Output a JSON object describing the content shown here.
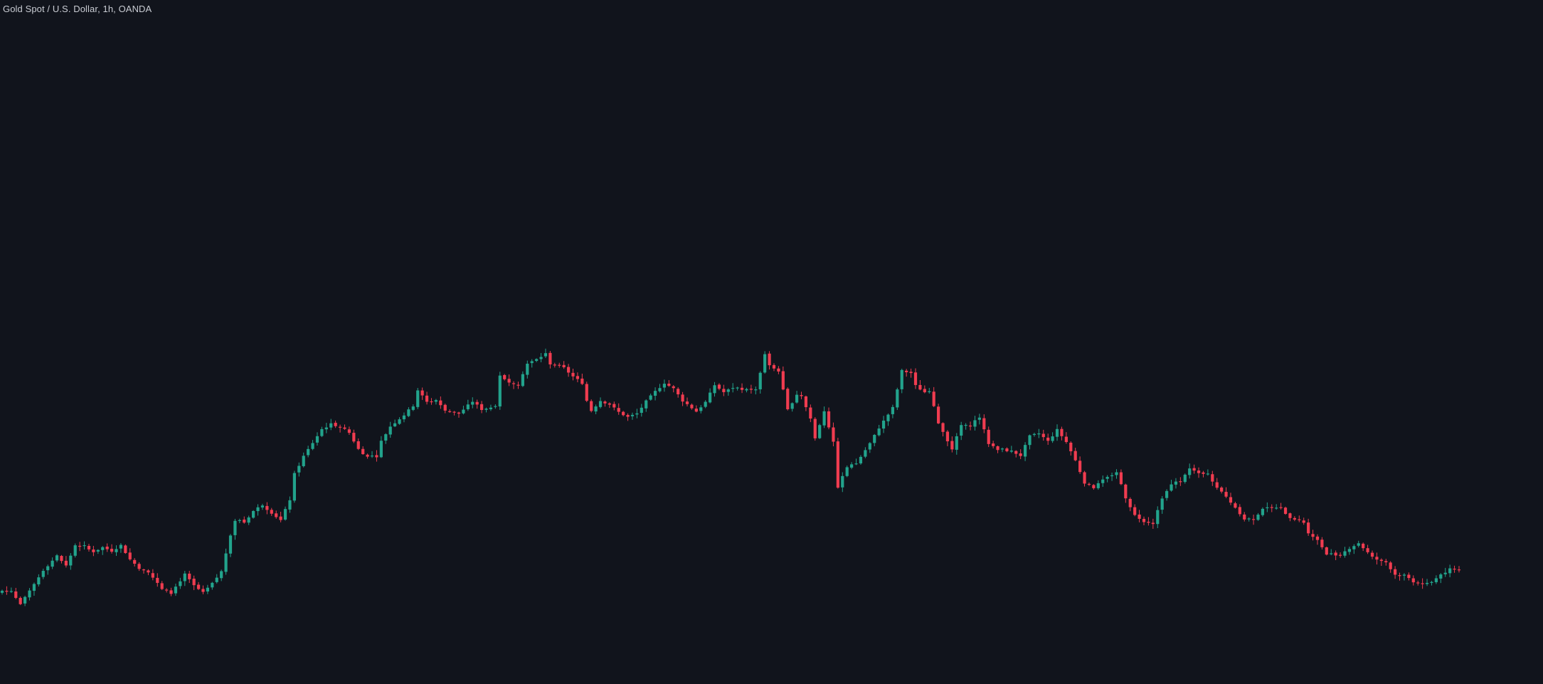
{
  "header": {
    "title": "Gold Spot / U.S. Dollar, 1h, OANDA"
  },
  "colors": {
    "background": "#11141c",
    "up": "#22a38c",
    "down": "#f03c50",
    "title": "#c9ccd3"
  },
  "chart_data": {
    "type": "candlestick",
    "title": "Gold Spot / U.S. Dollar, 1h, OANDA",
    "xlabel": "",
    "ylabel": "",
    "axes_visible": false,
    "grid": false,
    "ylim": [
      0,
      961
    ],
    "value_note": "Prices are not printed on the chart; values are in relative units read from the candle positions (higher = higher price).",
    "anchors": [
      [
        0,
        131
      ],
      [
        2,
        130
      ],
      [
        4,
        112
      ],
      [
        6,
        130
      ],
      [
        9,
        160
      ],
      [
        12,
        180
      ],
      [
        14,
        166
      ],
      [
        16,
        195
      ],
      [
        18,
        192
      ],
      [
        20,
        186
      ],
      [
        22,
        192
      ],
      [
        24,
        187
      ],
      [
        26,
        195
      ],
      [
        28,
        175
      ],
      [
        30,
        163
      ],
      [
        32,
        158
      ],
      [
        35,
        133
      ],
      [
        37,
        128
      ],
      [
        40,
        154
      ],
      [
        42,
        138
      ],
      [
        44,
        128
      ],
      [
        46,
        141
      ],
      [
        48,
        158
      ],
      [
        50,
        210
      ],
      [
        51,
        230
      ],
      [
        53,
        227
      ],
      [
        55,
        243
      ],
      [
        57,
        252
      ],
      [
        58,
        246
      ],
      [
        61,
        230
      ],
      [
        63,
        259
      ],
      [
        64,
        295
      ],
      [
        66,
        320
      ],
      [
        68,
        339
      ],
      [
        70,
        358
      ],
      [
        72,
        365
      ],
      [
        74,
        362
      ],
      [
        76,
        353
      ],
      [
        78,
        330
      ],
      [
        80,
        319
      ],
      [
        82,
        320
      ],
      [
        83,
        341
      ],
      [
        85,
        362
      ],
      [
        88,
        378
      ],
      [
        90,
        391
      ],
      [
        91,
        413
      ],
      [
        93,
        396
      ],
      [
        95,
        399
      ],
      [
        97,
        385
      ],
      [
        100,
        380
      ],
      [
        103,
        397
      ],
      [
        105,
        386
      ],
      [
        108,
        390
      ],
      [
        109,
        432
      ],
      [
        111,
        425
      ],
      [
        113,
        423
      ],
      [
        115,
        450
      ],
      [
        117,
        456
      ],
      [
        119,
        464
      ],
      [
        120,
        450
      ],
      [
        123,
        444
      ],
      [
        125,
        432
      ],
      [
        127,
        423
      ],
      [
        128,
        398
      ],
      [
        129,
        384
      ],
      [
        131,
        398
      ],
      [
        133,
        393
      ],
      [
        135,
        382
      ],
      [
        137,
        375
      ],
      [
        139,
        380
      ],
      [
        141,
        397
      ],
      [
        143,
        411
      ],
      [
        145,
        423
      ],
      [
        147,
        415
      ],
      [
        149,
        398
      ],
      [
        152,
        383
      ],
      [
        154,
        396
      ],
      [
        156,
        420
      ],
      [
        158,
        410
      ],
      [
        160,
        416
      ],
      [
        162,
        413
      ],
      [
        163,
        415
      ],
      [
        165,
        411
      ],
      [
        167,
        464
      ],
      [
        168,
        447
      ],
      [
        170,
        440
      ],
      [
        172,
        385
      ],
      [
        174,
        407
      ],
      [
        175,
        405
      ],
      [
        177,
        373
      ],
      [
        178,
        345
      ],
      [
        180,
        384
      ],
      [
        182,
        339
      ],
      [
        183,
        277
      ],
      [
        185,
        305
      ],
      [
        187,
        310
      ],
      [
        190,
        338
      ],
      [
        192,
        360
      ],
      [
        195,
        388
      ],
      [
        197,
        440
      ],
      [
        199,
        437
      ],
      [
        200,
        419
      ],
      [
        202,
        410
      ],
      [
        203,
        411
      ],
      [
        205,
        367
      ],
      [
        208,
        330
      ],
      [
        210,
        364
      ],
      [
        212,
        365
      ],
      [
        214,
        375
      ],
      [
        216,
        338
      ],
      [
        218,
        330
      ],
      [
        221,
        327
      ],
      [
        223,
        321
      ],
      [
        225,
        348
      ],
      [
        227,
        352
      ],
      [
        229,
        341
      ],
      [
        231,
        357
      ],
      [
        233,
        340
      ],
      [
        235,
        314
      ],
      [
        237,
        283
      ],
      [
        239,
        276
      ],
      [
        241,
        286
      ],
      [
        244,
        298
      ],
      [
        246,
        262
      ],
      [
        248,
        237
      ],
      [
        250,
        229
      ],
      [
        252,
        226
      ],
      [
        254,
        262
      ],
      [
        256,
        280
      ],
      [
        258,
        287
      ],
      [
        260,
        304
      ],
      [
        262,
        295
      ],
      [
        264,
        294
      ],
      [
        266,
        276
      ],
      [
        268,
        263
      ],
      [
        270,
        248
      ],
      [
        272,
        232
      ],
      [
        274,
        231
      ],
      [
        276,
        247
      ],
      [
        278,
        247
      ],
      [
        280,
        246
      ],
      [
        282,
        234
      ],
      [
        283,
        232
      ],
      [
        285,
        227
      ],
      [
        286,
        213
      ],
      [
        288,
        202
      ],
      [
        290,
        183
      ],
      [
        291,
        183
      ],
      [
        293,
        181
      ],
      [
        295,
        191
      ],
      [
        297,
        198
      ],
      [
        300,
        178
      ],
      [
        302,
        172
      ],
      [
        303,
        171
      ],
      [
        305,
        154
      ],
      [
        307,
        153
      ],
      [
        309,
        144
      ],
      [
        311,
        141
      ],
      [
        313,
        143
      ],
      [
        315,
        154
      ],
      [
        317,
        161
      ],
      [
        319,
        163
      ]
    ]
  }
}
